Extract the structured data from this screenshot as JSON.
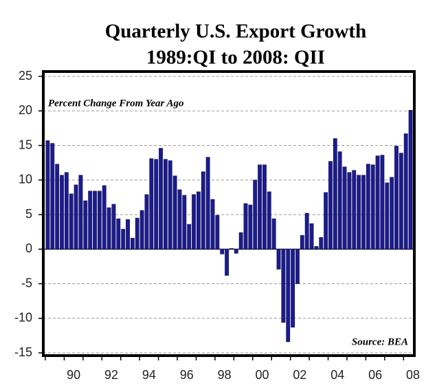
{
  "chart_data": {
    "type": "bar",
    "title": "Quarterly U.S. Export Growth",
    "subtitle": "1989:QI to 2008: QII",
    "annotations": [
      "Percent Change From Year Ago",
      "Source: BEA"
    ],
    "categories": [
      null,
      null,
      null,
      null,
      "90",
      null,
      null,
      null,
      null,
      null,
      null,
      null,
      "92",
      null,
      null,
      null,
      null,
      null,
      null,
      null,
      "94",
      null,
      null,
      null,
      null,
      null,
      null,
      null,
      "96",
      null,
      null,
      null,
      null,
      null,
      null,
      null,
      "98",
      null,
      null,
      null,
      null,
      null,
      null,
      null,
      "00",
      null,
      null,
      null,
      null,
      null,
      null,
      null,
      "02",
      null,
      null,
      null,
      null,
      null,
      null,
      null,
      "04",
      null,
      null,
      null,
      null,
      null,
      null,
      null,
      "06",
      null,
      null,
      null,
      null,
      null,
      null,
      null,
      "08",
      null
    ],
    "values": [
      15.7,
      15.3,
      12.3,
      10.7,
      11.1,
      8.0,
      9.3,
      10.7,
      7.0,
      8.4,
      8.4,
      8.4,
      9.2,
      6.0,
      6.5,
      4.4,
      2.9,
      4.3,
      1.6,
      4.5,
      5.6,
      7.9,
      13.1,
      13.0,
      14.6,
      13.0,
      12.8,
      10.6,
      8.6,
      7.8,
      3.6,
      7.9,
      8.3,
      11.2,
      13.3,
      7.2,
      4.9,
      -0.7,
      -3.8,
      0.1,
      -0.6,
      2.4,
      6.6,
      6.4,
      10.0,
      12.2,
      12.2,
      8.3,
      4.4,
      -2.9,
      -10.6,
      -13.4,
      -11.3,
      -5.0,
      2.0,
      5.2,
      3.7,
      0.4,
      1.7,
      8.2,
      12.7,
      16.0,
      14.1,
      11.9,
      11.1,
      11.4,
      10.7,
      10.7,
      12.3,
      12.2,
      13.5,
      13.6,
      9.6,
      10.4,
      14.9,
      13.9,
      16.7,
      20.1
    ],
    "color": "#1c1c8f",
    "ylim": [
      -15,
      25
    ],
    "yticks": [
      -15,
      -10,
      -5,
      0,
      5,
      10,
      15,
      20,
      25
    ],
    "grid": true
  }
}
